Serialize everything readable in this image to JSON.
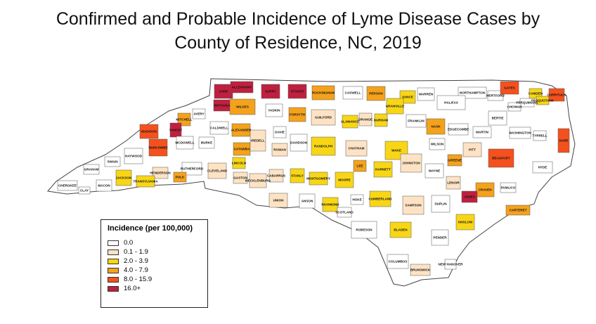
{
  "title": {
    "line1": "Confirmed and Probable Incidence of Lyme Disease Cases by",
    "line2": "County of Residence, NC, 2019"
  },
  "legend": {
    "title": "Incidence (per 100,000)",
    "classes": [
      {
        "label": "0.0",
        "color": "#ffffff"
      },
      {
        "label": "0.1 - 1.9",
        "color": "#fde3c4"
      },
      {
        "label": "2.0 - 3.9",
        "color": "#f8d616"
      },
      {
        "label": "4.0 - 7.9",
        "color": "#f4a21c"
      },
      {
        "label": "8.0 - 15.9",
        "color": "#f4511e"
      },
      {
        "label": "16.0+",
        "color": "#c0203f"
      }
    ]
  },
  "counties": [
    {
      "name": "ASHE",
      "class": 5
    },
    {
      "name": "ALLEGHANY",
      "class": 5
    },
    {
      "name": "SURRY",
      "class": 5
    },
    {
      "name": "STOKES",
      "class": 5
    },
    {
      "name": "ROCKINGHAM",
      "class": 3
    },
    {
      "name": "CASWELL",
      "class": 0
    },
    {
      "name": "PERSON",
      "class": 3
    },
    {
      "name": "VANCE",
      "class": 2
    },
    {
      "name": "WARREN",
      "class": 0
    },
    {
      "name": "NORTHAMPTON",
      "class": 0
    },
    {
      "name": "HERTFORD",
      "class": 0
    },
    {
      "name": "GATES",
      "class": 4
    },
    {
      "name": "CAMDEN",
      "class": 2
    },
    {
      "name": "PASQUOTANK",
      "class": 2
    },
    {
      "name": "CURRITUCK",
      "class": 4
    },
    {
      "name": "PERQUIMANS",
      "class": 0
    },
    {
      "name": "CHOWAN",
      "class": 0
    },
    {
      "name": "WATAUGA",
      "class": 5
    },
    {
      "name": "WILKES",
      "class": 3
    },
    {
      "name": "YADKIN",
      "class": 0
    },
    {
      "name": "FORSYTH",
      "class": 3
    },
    {
      "name": "GUILFORD",
      "class": 1
    },
    {
      "name": "ALAMANCE",
      "class": 2
    },
    {
      "name": "ORANGE",
      "class": 1
    },
    {
      "name": "DURHAM",
      "class": 2
    },
    {
      "name": "GRANVILLE",
      "class": 2
    },
    {
      "name": "FRANKLIN",
      "class": 0
    },
    {
      "name": "HALIFAX",
      "class": 0
    },
    {
      "name": "BERTIE",
      "class": 0
    },
    {
      "name": "AVERY",
      "class": 0
    },
    {
      "name": "MITCHELL",
      "class": 3
    },
    {
      "name": "YANCEY",
      "class": 5
    },
    {
      "name": "MADISON",
      "class": 4
    },
    {
      "name": "CALDWELL",
      "class": 0
    },
    {
      "name": "ALEXANDER",
      "class": 3
    },
    {
      "name": "DAVIE",
      "class": 0
    },
    {
      "name": "DAVIDSON",
      "class": 0
    },
    {
      "name": "RANDOLPH",
      "class": 2
    },
    {
      "name": "CHATHAM",
      "class": 1
    },
    {
      "name": "WAKE",
      "class": 2
    },
    {
      "name": "NASH",
      "class": 3
    },
    {
      "name": "EDGECOMBE",
      "class": 0
    },
    {
      "name": "MARTIN",
      "class": 0
    },
    {
      "name": "WASHINGTON",
      "class": 0
    },
    {
      "name": "TYRRELL",
      "class": 0
    },
    {
      "name": "DARE",
      "class": 4
    },
    {
      "name": "BUNCOMBE",
      "class": 4
    },
    {
      "name": "MCDOWELL",
      "class": 0
    },
    {
      "name": "BURKE",
      "class": 0
    },
    {
      "name": "CATAWBA",
      "class": 3
    },
    {
      "name": "IREDELL",
      "class": 1
    },
    {
      "name": "ROWAN",
      "class": 1
    },
    {
      "name": "WILSON",
      "class": 0
    },
    {
      "name": "PITT",
      "class": 1
    },
    {
      "name": "BEAUFORT",
      "class": 4
    },
    {
      "name": "HYDE",
      "class": 0
    },
    {
      "name": "HAYWOOD",
      "class": 0
    },
    {
      "name": "SWAIN",
      "class": 0
    },
    {
      "name": "GRAHAM",
      "class": 0
    },
    {
      "name": "JACKSON",
      "class": 2
    },
    {
      "name": "HENDERSON",
      "class": 1
    },
    {
      "name": "RUTHERFORD",
      "class": 0
    },
    {
      "name": "POLK",
      "class": 3
    },
    {
      "name": "CLEVELAND",
      "class": 1
    },
    {
      "name": "LINCOLN",
      "class": 2
    },
    {
      "name": "GASTON",
      "class": 1
    },
    {
      "name": "MECKLENBURG",
      "class": 1
    },
    {
      "name": "CABARRUS",
      "class": 1
    },
    {
      "name": "STANLY",
      "class": 2
    },
    {
      "name": "MONTGOMERY",
      "class": 2
    },
    {
      "name": "MOORE",
      "class": 2
    },
    {
      "name": "LEE",
      "class": 3
    },
    {
      "name": "HARNETT",
      "class": 2
    },
    {
      "name": "JOHNSTON",
      "class": 1
    },
    {
      "name": "WAYNE",
      "class": 0
    },
    {
      "name": "GREENE",
      "class": 3
    },
    {
      "name": "LENOIR",
      "class": 1
    },
    {
      "name": "CRAVEN",
      "class": 3
    },
    {
      "name": "PAMLICO",
      "class": 0
    },
    {
      "name": "JONES",
      "class": 5
    },
    {
      "name": "CHEROKEE",
      "class": 0
    },
    {
      "name": "CLAY",
      "class": 0
    },
    {
      "name": "MACON",
      "class": 0
    },
    {
      "name": "TRANSYLVANIA",
      "class": 2
    },
    {
      "name": "UNION",
      "class": 1
    },
    {
      "name": "ANSON",
      "class": 0
    },
    {
      "name": "RICHMOND",
      "class": 2
    },
    {
      "name": "SCOTLAND",
      "class": 0
    },
    {
      "name": "HOKE",
      "class": 0
    },
    {
      "name": "CUMBERLAND",
      "class": 2
    },
    {
      "name": "SAMPSON",
      "class": 1
    },
    {
      "name": "DUPLIN",
      "class": 0
    },
    {
      "name": "ONSLOW",
      "class": 2
    },
    {
      "name": "CARTERET",
      "class": 3
    },
    {
      "name": "ROBESON",
      "class": 0
    },
    {
      "name": "BLADEN",
      "class": 2
    },
    {
      "name": "PENDER",
      "class": 0
    },
    {
      "name": "COLUMBUS",
      "class": 0
    },
    {
      "name": "NEW HANOVER",
      "class": 0
    },
    {
      "name": "BRUNSWICK",
      "class": 1
    }
  ]
}
